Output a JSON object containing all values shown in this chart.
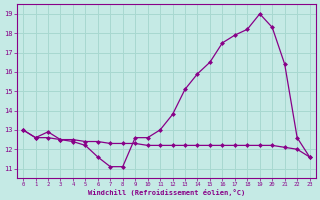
{
  "xlabel": "Windchill (Refroidissement éolien,°C)",
  "bg_color": "#c5eae5",
  "line_color": "#880088",
  "grid_color": "#a8d8d0",
  "line1_x": [
    0,
    1,
    2,
    3,
    4,
    5,
    6,
    7,
    8,
    9,
    10,
    11,
    12,
    13,
    14,
    15,
    16,
    17,
    18,
    19,
    20,
    21,
    22,
    23
  ],
  "line1_y": [
    13.0,
    12.6,
    12.9,
    12.5,
    12.4,
    12.2,
    11.6,
    11.1,
    11.1,
    12.6,
    12.6,
    13.0,
    13.8,
    15.1,
    15.9,
    16.5,
    17.5,
    17.9,
    18.2,
    19.0,
    18.3,
    16.4,
    12.6,
    11.6
  ],
  "line2_x": [
    0,
    1,
    2,
    3,
    4,
    5,
    6,
    7,
    8,
    9,
    10,
    11,
    12,
    13,
    14,
    15,
    16,
    17,
    18,
    19,
    20,
    21,
    22,
    23
  ],
  "line2_y": [
    13.0,
    12.6,
    12.6,
    12.5,
    12.5,
    12.4,
    12.4,
    12.3,
    12.3,
    12.3,
    12.2,
    12.2,
    12.2,
    12.2,
    12.2,
    12.2,
    12.2,
    12.2,
    12.2,
    12.2,
    12.2,
    12.1,
    12.0,
    11.6
  ],
  "xlim": [
    -0.5,
    23.5
  ],
  "ylim": [
    10.5,
    19.5
  ],
  "yticks": [
    11,
    12,
    13,
    14,
    15,
    16,
    17,
    18,
    19
  ],
  "xticks": [
    0,
    1,
    2,
    3,
    4,
    5,
    6,
    7,
    8,
    9,
    10,
    11,
    12,
    13,
    14,
    15,
    16,
    17,
    18,
    19,
    20,
    21,
    22,
    23
  ]
}
